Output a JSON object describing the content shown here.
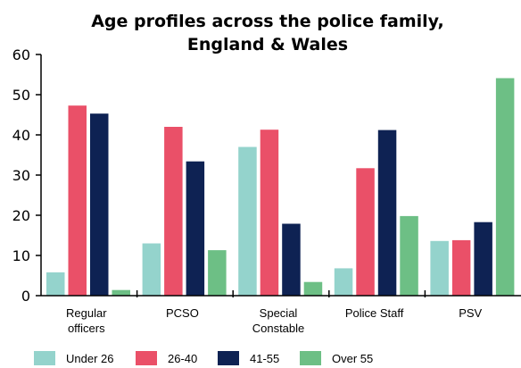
{
  "chart_data": {
    "type": "bar",
    "title": [
      "Age profiles across the police family,",
      "England & Wales"
    ],
    "xlabel": "",
    "ylabel": "",
    "ylim": [
      0,
      60
    ],
    "yticks": [
      "0",
      "10",
      "20",
      "30",
      "40",
      "50",
      "60"
    ],
    "grid": false,
    "legend_position": "bottom",
    "categories": [
      [
        "Regular",
        "officers"
      ],
      [
        "PCSO"
      ],
      [
        "Special",
        "Constable"
      ],
      [
        "Police Staff"
      ],
      [
        "PSV"
      ]
    ],
    "series": [
      {
        "name": "Under 26",
        "color": "#94D3CC",
        "values": [
          5.8,
          13.0,
          37.0,
          6.8,
          13.6
        ]
      },
      {
        "name": "26-40",
        "color": "#EA5068",
        "values": [
          47.3,
          42.0,
          41.3,
          31.7,
          13.8
        ]
      },
      {
        "name": "41-55",
        "color": "#0E2253",
        "values": [
          45.3,
          33.4,
          17.9,
          41.2,
          18.3
        ]
      },
      {
        "name": "Over 55",
        "color": "#6DBF85",
        "values": [
          1.4,
          11.3,
          3.4,
          19.8,
          54.1
        ]
      }
    ]
  }
}
